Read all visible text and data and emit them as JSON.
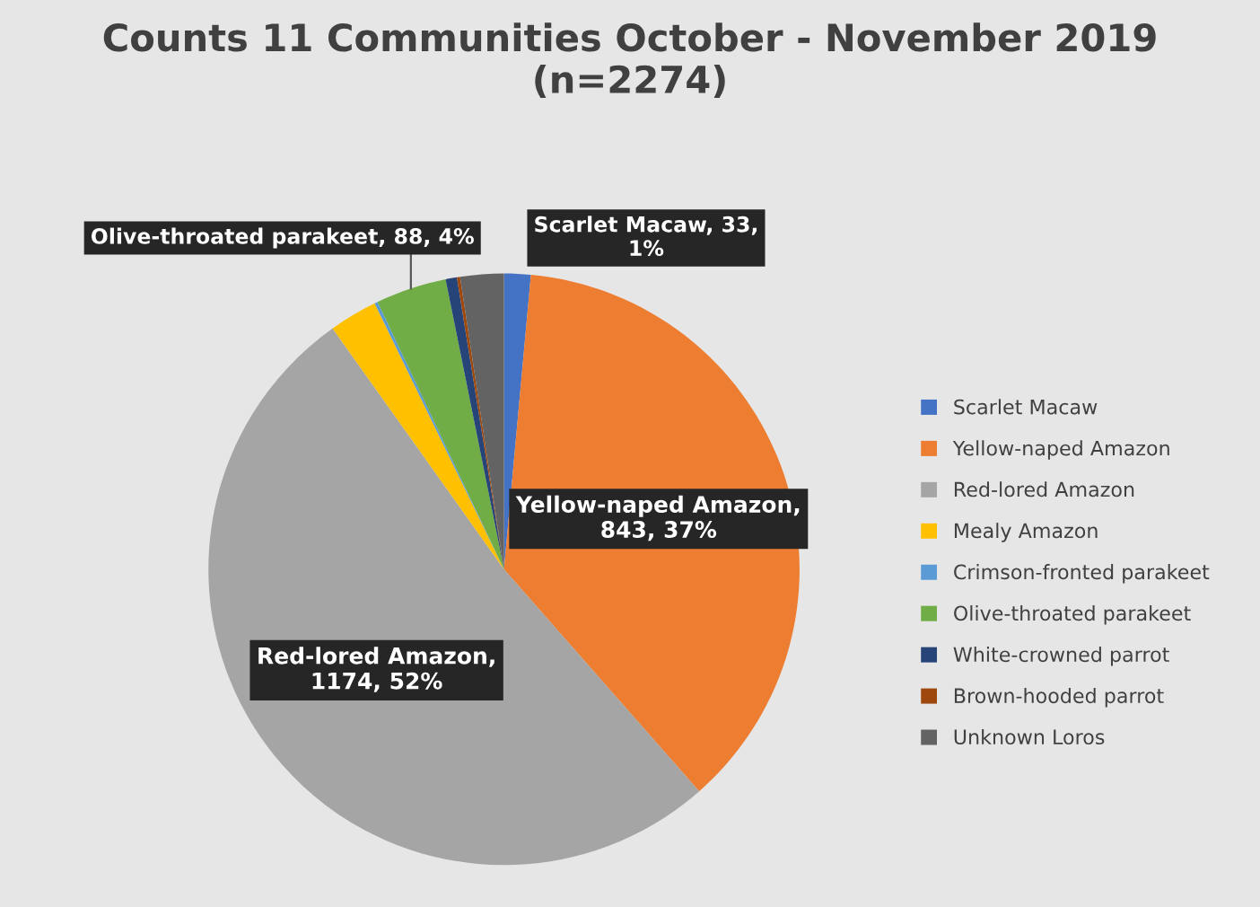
{
  "chart_data": {
    "type": "pie",
    "title": "Counts 11 Communities October - November 2019 (n=2274)",
    "categories": [
      "Scarlet Macaw",
      "Yellow-naped Amazon",
      "Red-lored Amazon",
      "Mealy Amazon",
      "Crimson-fronted parakeet",
      "Olive-throated parakeet",
      "White-crowned parrot",
      "Brown-hooded parrot",
      "Unknown Loros"
    ],
    "values": [
      33,
      843,
      1174,
      60,
      4,
      88,
      14,
      4,
      54
    ],
    "colors": [
      "#4472c4",
      "#ed7d31",
      "#a5a5a5",
      "#ffc000",
      "#5b9bd5",
      "#70ad47",
      "#264478",
      "#9e480e",
      "#636363"
    ],
    "value_labels": [
      "Scarlet Macaw, 33, 1%",
      "Yellow-naped Amazon, 843, 37%",
      "Red-lored Amazon, 1174, 52%",
      null,
      null,
      "Olive-throated parakeet, 88, 4%",
      null,
      null,
      null
    ],
    "legend": "right"
  }
}
